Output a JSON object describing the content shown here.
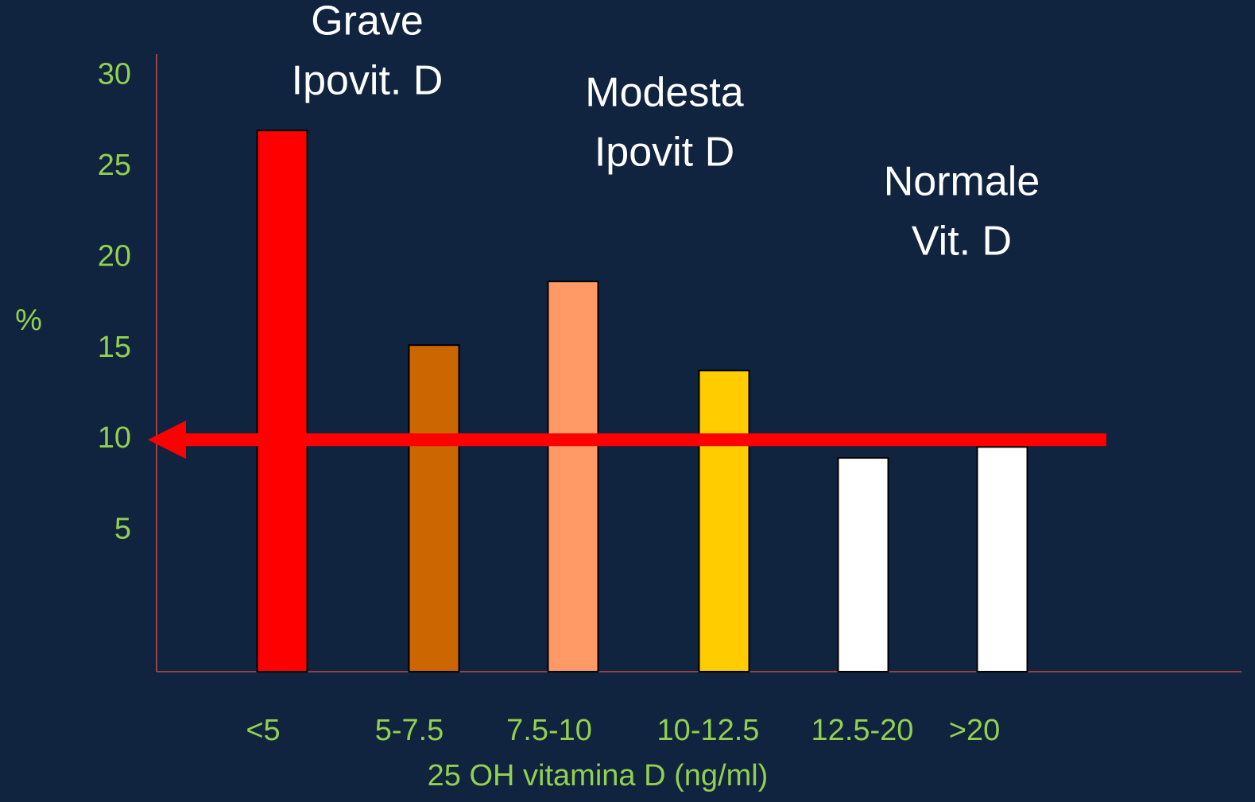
{
  "chart_data": {
    "type": "bar",
    "categories": [
      "<5",
      "5-7.5",
      "7.5-10",
      "10-12.5",
      "12.5-20",
      ">20"
    ],
    "values": [
      27,
      15.2,
      18.7,
      13.8,
      9,
      9.6
    ],
    "colors": [
      "#ff0000",
      "#cc6600",
      "#ff9966",
      "#ffcc00",
      "#ffffff",
      "#ffffff"
    ],
    "ylabel": "%",
    "xlabel": "25 OH vitamina D (ng/ml)",
    "ylim": [
      -2.75,
      31.2
    ],
    "yticks": [
      5,
      10,
      15,
      20,
      25,
      30
    ],
    "reference_arrow": 10,
    "annotations": [
      [
        "Grave",
        "Ipovit. D"
      ],
      [
        "Modesta",
        "Ipovit D"
      ],
      [
        "Normale",
        "Vit. D"
      ]
    ]
  }
}
